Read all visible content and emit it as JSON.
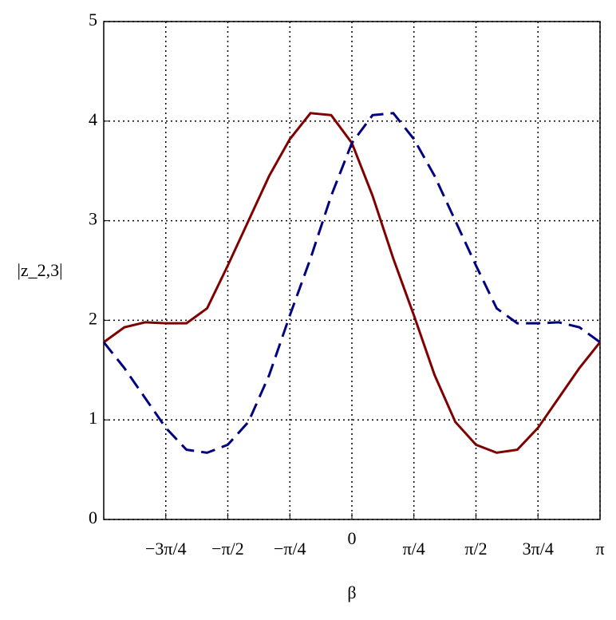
{
  "chart_data": {
    "type": "line",
    "x_label": "β",
    "y_label": "|z_2,3|",
    "x": [
      -3.1416,
      -2.88,
      -2.618,
      -2.356,
      -2.094,
      -1.833,
      -1.571,
      -1.309,
      -1.047,
      -0.785,
      -0.524,
      -0.262,
      0,
      0.262,
      0.524,
      0.785,
      1.047,
      1.309,
      1.571,
      1.833,
      2.094,
      2.356,
      2.618,
      2.88,
      3.1416
    ],
    "series": [
      {
        "color": "#800000",
        "dash": "solid",
        "values": [
          1.78,
          1.93,
          1.98,
          1.97,
          1.97,
          2.12,
          2.55,
          3.0,
          3.45,
          3.82,
          4.08,
          4.06,
          3.78,
          3.25,
          2.62,
          2.05,
          1.45,
          0.98,
          0.75,
          0.67,
          0.7,
          0.92,
          1.22,
          1.52,
          1.78
        ]
      },
      {
        "color": "#000080",
        "dash": "dashed",
        "values": [
          1.78,
          1.52,
          1.22,
          0.92,
          0.7,
          0.67,
          0.75,
          0.98,
          1.45,
          2.05,
          2.62,
          3.25,
          3.78,
          4.06,
          4.08,
          3.82,
          3.45,
          3.0,
          2.55,
          2.12,
          1.97,
          1.97,
          1.98,
          1.93,
          1.78
        ]
      }
    ],
    "xlim": [
      -3.1416,
      3.1416
    ],
    "xticks": [
      {
        "value": -2.356,
        "label": "−3π/4"
      },
      {
        "value": -1.571,
        "label": "−π/2"
      },
      {
        "value": -0.785,
        "label": "−π/4"
      },
      0,
      {
        "value": 0.785,
        "label": "π/4"
      },
      {
        "value": 1.571,
        "label": "π/2"
      },
      {
        "value": 2.356,
        "label": "3π/4"
      },
      {
        "value": 3.1416,
        "label": "π"
      }
    ],
    "ylim": [
      0,
      5
    ],
    "yticks": [
      0,
      1,
      2,
      3,
      4,
      5
    ],
    "grid": true
  }
}
